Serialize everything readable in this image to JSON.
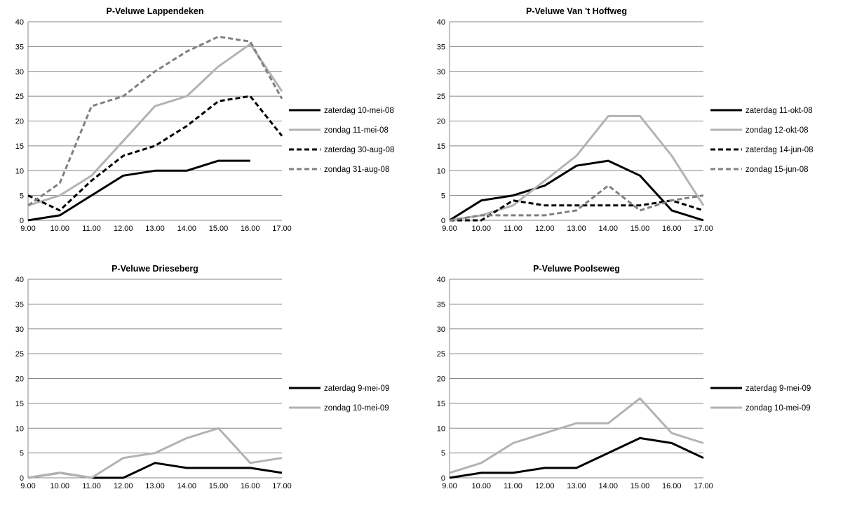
{
  "chart_data": [
    {
      "type": "line",
      "title": "P-Veluwe Lappendeken",
      "categories": [
        "9.00",
        "10.00",
        "11.00",
        "12.00",
        "13.00",
        "14.00",
        "15.00",
        "16.00",
        "17.00"
      ],
      "ylim": [
        0,
        40
      ],
      "yticks": [
        "0",
        "5",
        "10",
        "15",
        "20",
        "25",
        "30",
        "35",
        "40"
      ],
      "grid": true,
      "legend_position": "right",
      "series": [
        {
          "name": "zaterdag 10-mei-08",
          "values": [
            0,
            1,
            5,
            9,
            10,
            10,
            12,
            12,
            null
          ],
          "color": "#000000",
          "dashed": false
        },
        {
          "name": "zondag 11-mei-08",
          "values": [
            3,
            5,
            9,
            16,
            23,
            25,
            31,
            35.5,
            26
          ],
          "color": "#b3b3b3",
          "dashed": false
        },
        {
          "name": "zaterdag 30-aug-08",
          "values": [
            5,
            2,
            8,
            13,
            15,
            19,
            24,
            25,
            17
          ],
          "color": "#000000",
          "dashed": true
        },
        {
          "name": "zondag 31-aug-08",
          "values": [
            3,
            7.5,
            23,
            25,
            30,
            34,
            37,
            36,
            24.5
          ],
          "color": "#808080",
          "dashed": true
        }
      ]
    },
    {
      "type": "line",
      "title": "P-Veluwe Van 't Hoffweg",
      "categories": [
        "9.00",
        "10.00",
        "11.00",
        "12.00",
        "13.00",
        "14.00",
        "15.00",
        "16.00",
        "17.00"
      ],
      "ylim": [
        0,
        40
      ],
      "yticks": [
        "0",
        "5",
        "10",
        "15",
        "20",
        "25",
        "30",
        "35",
        "40"
      ],
      "grid": true,
      "legend_position": "right",
      "series": [
        {
          "name": "zaterdag 11-okt-08",
          "values": [
            0,
            4,
            5,
            7,
            11,
            12,
            9,
            2,
            0
          ],
          "color": "#000000",
          "dashed": false
        },
        {
          "name": "zondag 12-okt-08",
          "values": [
            0,
            1,
            3,
            8,
            13,
            21,
            21,
            13,
            3
          ],
          "color": "#b3b3b3",
          "dashed": false
        },
        {
          "name": "zaterdag 14-jun-08",
          "values": [
            0,
            0,
            4,
            3,
            3,
            3,
            3,
            4,
            2
          ],
          "color": "#000000",
          "dashed": true
        },
        {
          "name": "zondag 15-jun-08",
          "values": [
            0,
            1,
            1,
            1,
            2,
            7,
            2,
            4,
            5
          ],
          "color": "#808080",
          "dashed": true
        }
      ]
    },
    {
      "type": "line",
      "title": "P-Veluwe Drieseberg",
      "categories": [
        "9.00",
        "10.00",
        "11.00",
        "12.00",
        "13.00",
        "14.00",
        "15.00",
        "16.00",
        "17.00"
      ],
      "ylim": [
        0,
        40
      ],
      "yticks": [
        "0",
        "5",
        "10",
        "15",
        "20",
        "25",
        "30",
        "35",
        "40"
      ],
      "grid": true,
      "legend_position": "right",
      "series": [
        {
          "name": "zaterdag 9-mei-09",
          "values": [
            0,
            1,
            0,
            0,
            3,
            2,
            2,
            2,
            1
          ],
          "color": "#000000",
          "dashed": false
        },
        {
          "name": "zondag 10-mei-09",
          "values": [
            0,
            1,
            0,
            4,
            5,
            8,
            10,
            3,
            4
          ],
          "color": "#b3b3b3",
          "dashed": false
        }
      ]
    },
    {
      "type": "line",
      "title": "P-Veluwe Poolseweg",
      "categories": [
        "9.00",
        "10.00",
        "11.00",
        "12.00",
        "13.00",
        "14.00",
        "15.00",
        "16.00",
        "17.00"
      ],
      "ylim": [
        0,
        40
      ],
      "yticks": [
        "0",
        "5",
        "10",
        "15",
        "20",
        "25",
        "30",
        "35",
        "40"
      ],
      "grid": true,
      "legend_position": "right",
      "series": [
        {
          "name": "zaterdag 9-mei-09",
          "values": [
            0,
            1,
            1,
            2,
            2,
            5,
            8,
            7,
            4
          ],
          "color": "#000000",
          "dashed": false
        },
        {
          "name": "zondag 10-mei-09",
          "values": [
            1,
            3,
            7,
            9,
            11,
            11,
            16,
            9,
            7
          ],
          "color": "#b3b3b3",
          "dashed": false
        }
      ]
    }
  ]
}
